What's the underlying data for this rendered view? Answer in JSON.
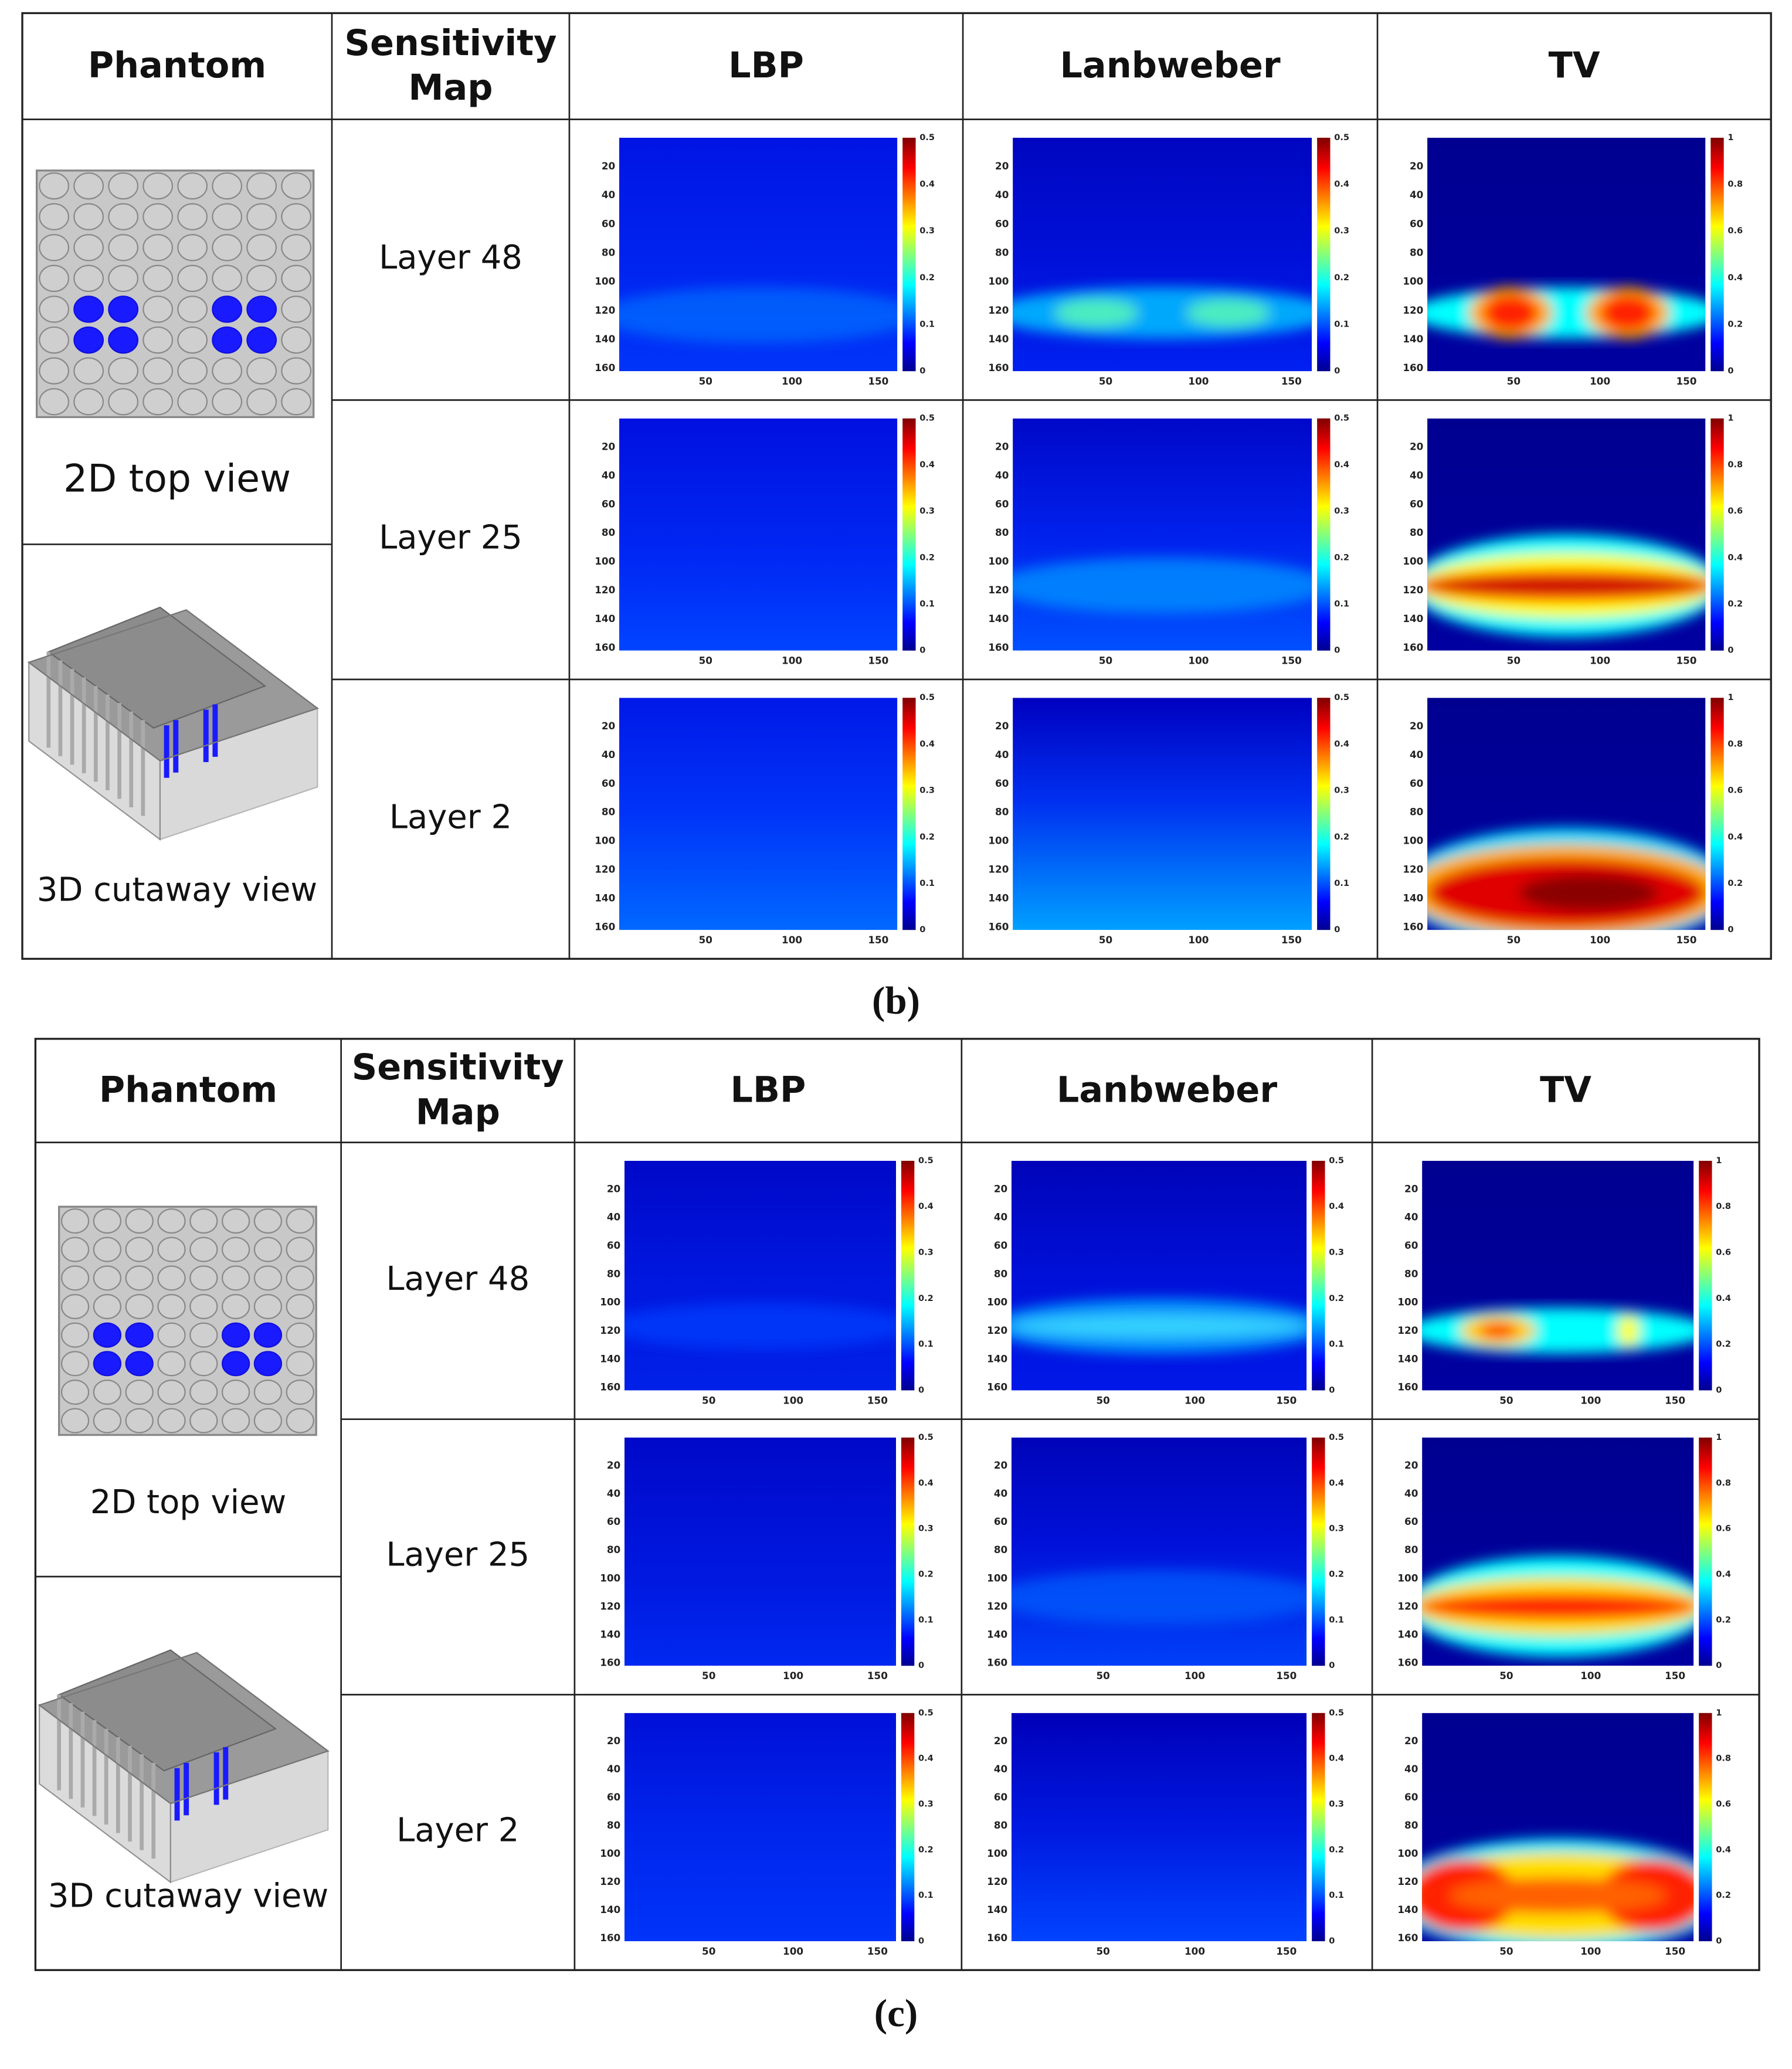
{
  "figures": [
    {
      "caption": "(b)",
      "header": [
        "Phantom",
        "Sensitivity Map",
        "LBP",
        "Lanbweber",
        "TV"
      ],
      "phantom_labels": [
        "2D top view",
        "3D cutaway view"
      ],
      "rows": [
        "Layer 48",
        "Layer 25",
        "Layer 2"
      ]
    },
    {
      "caption": "(c)",
      "header": [
        "Phantom",
        "Sensitivity Map",
        "LBP",
        "Lanbweber",
        "TV"
      ],
      "phantom_labels": [
        "2D top view",
        "3D cutaway view"
      ],
      "rows": [
        "Layer 48",
        "Layer 25",
        "Layer 2"
      ]
    }
  ],
  "axes": {
    "xlim": [
      0,
      161
    ],
    "ylim": [
      0,
      162
    ],
    "xticks": [
      50,
      100,
      150
    ],
    "yticks": [
      20,
      40,
      60,
      80,
      100,
      120,
      140,
      160
    ]
  },
  "colorbar_ticks": [
    [
      0,
      0.1,
      0.2,
      0.3,
      0.4,
      0.5
    ],
    [
      0,
      0.1,
      0.2,
      0.3,
      0.4,
      0.5
    ],
    [
      0,
      0.2,
      0.4,
      0.6,
      0.8,
      1
    ]
  ],
  "colorbar_lims": [
    [
      0,
      0.5
    ],
    [
      0,
      0.5
    ],
    [
      0,
      1
    ]
  ]
}
